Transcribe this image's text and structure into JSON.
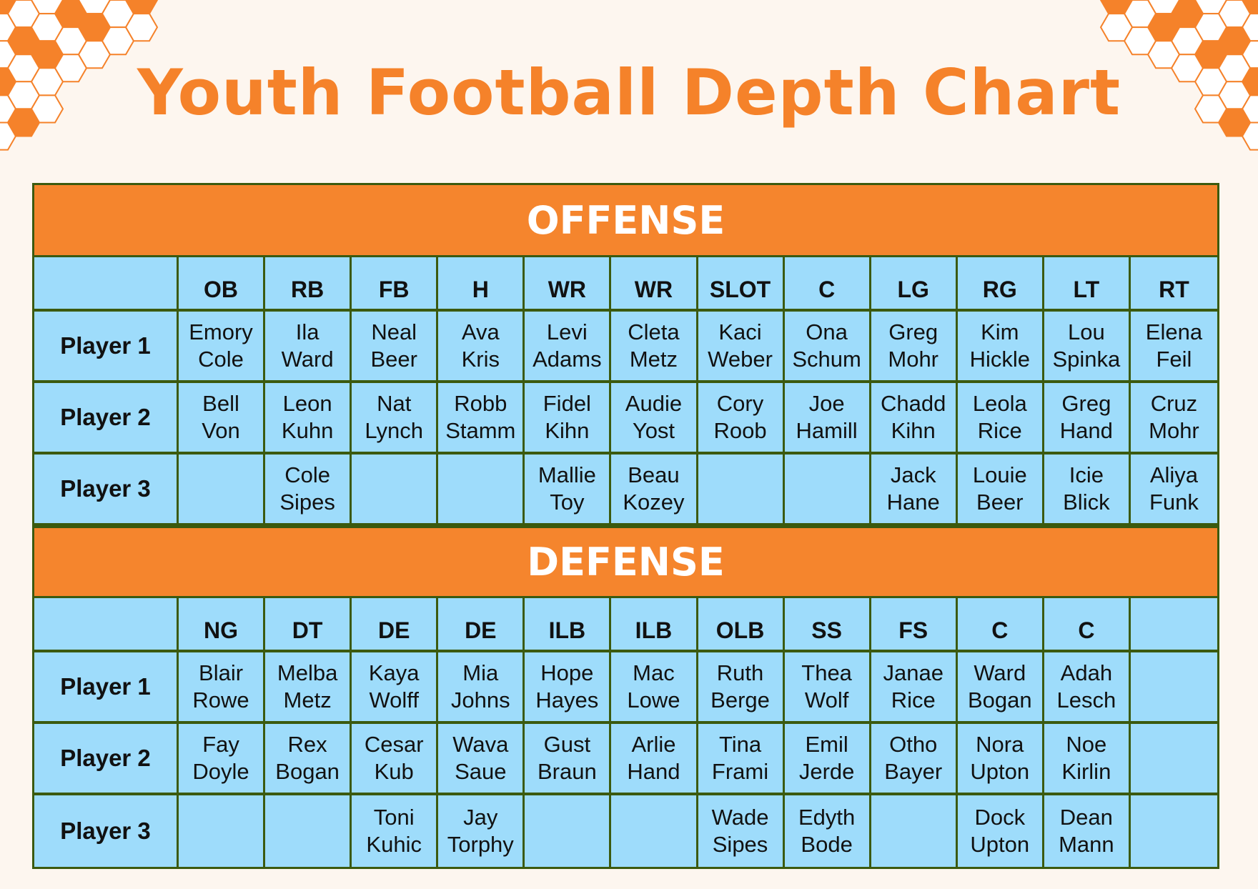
{
  "title": "Youth Football Depth Chart",
  "colors": {
    "accent": "#F5822A",
    "cell": "#9EDCFB",
    "border": "#3B5A0F",
    "background": "#FDF6EF"
  },
  "sections": [
    {
      "title": "OFFENSE",
      "positions": [
        "OB",
        "RB",
        "FB",
        "H",
        "WR",
        "WR",
        "SLOT",
        "C",
        "LG",
        "RG",
        "LT",
        "RT"
      ],
      "rows": [
        {
          "label": "Player 1",
          "players": [
            "Emory Cole",
            "Ila Ward",
            "Neal Beer",
            "Ava Kris",
            "Levi Adams",
            "Cleta Metz",
            "Kaci Weber",
            "Ona Schum",
            "Greg Mohr",
            "Kim Hickle",
            "Lou Spinka",
            "Elena Feil"
          ]
        },
        {
          "label": "Player 2",
          "players": [
            "Bell Von",
            "Leon Kuhn",
            "Nat Lynch",
            "Robb Stamm",
            "Fidel Kihn",
            "Audie Yost",
            "Cory Roob",
            "Joe Hamill",
            "Chadd Kihn",
            "Leola Rice",
            "Greg Hand",
            "Cruz Mohr"
          ]
        },
        {
          "label": "Player 3",
          "players": [
            "",
            "Cole Sipes",
            "",
            "",
            "Mallie Toy",
            "Beau Kozey",
            "",
            "",
            "Jack Hane",
            "Louie Beer",
            "Icie Blick",
            "Aliya Funk"
          ]
        }
      ]
    },
    {
      "title": "DEFENSE",
      "positions": [
        "NG",
        "DT",
        "DE",
        "DE",
        "ILB",
        "ILB",
        "OLB",
        "SS",
        "FS",
        "C",
        "C",
        ""
      ],
      "rows": [
        {
          "label": "Player 1",
          "players": [
            "Blair Rowe",
            "Melba Metz",
            "Kaya Wolff",
            "Mia Johns",
            "Hope Hayes",
            "Mac Lowe",
            "Ruth Berge",
            "Thea Wolf",
            "Janae Rice",
            "Ward Bogan",
            "Adah Lesch",
            ""
          ]
        },
        {
          "label": "Player 2",
          "players": [
            "Fay Doyle",
            "Rex Bogan",
            "Cesar Kub",
            "Wava Saue",
            "Gust Braun",
            "Arlie Hand",
            "Tina Frami",
            "Emil Jerde",
            "Otho Bayer",
            "Nora Upton",
            "Noe Kirlin",
            ""
          ]
        },
        {
          "label": "Player 3",
          "players": [
            "",
            "",
            "Toni Kuhic",
            "Jay Torphy",
            "",
            "",
            "Wade Sipes",
            "Edyth Bode",
            "",
            "Dock Upton",
            "Dean Mann",
            ""
          ]
        }
      ]
    }
  ]
}
